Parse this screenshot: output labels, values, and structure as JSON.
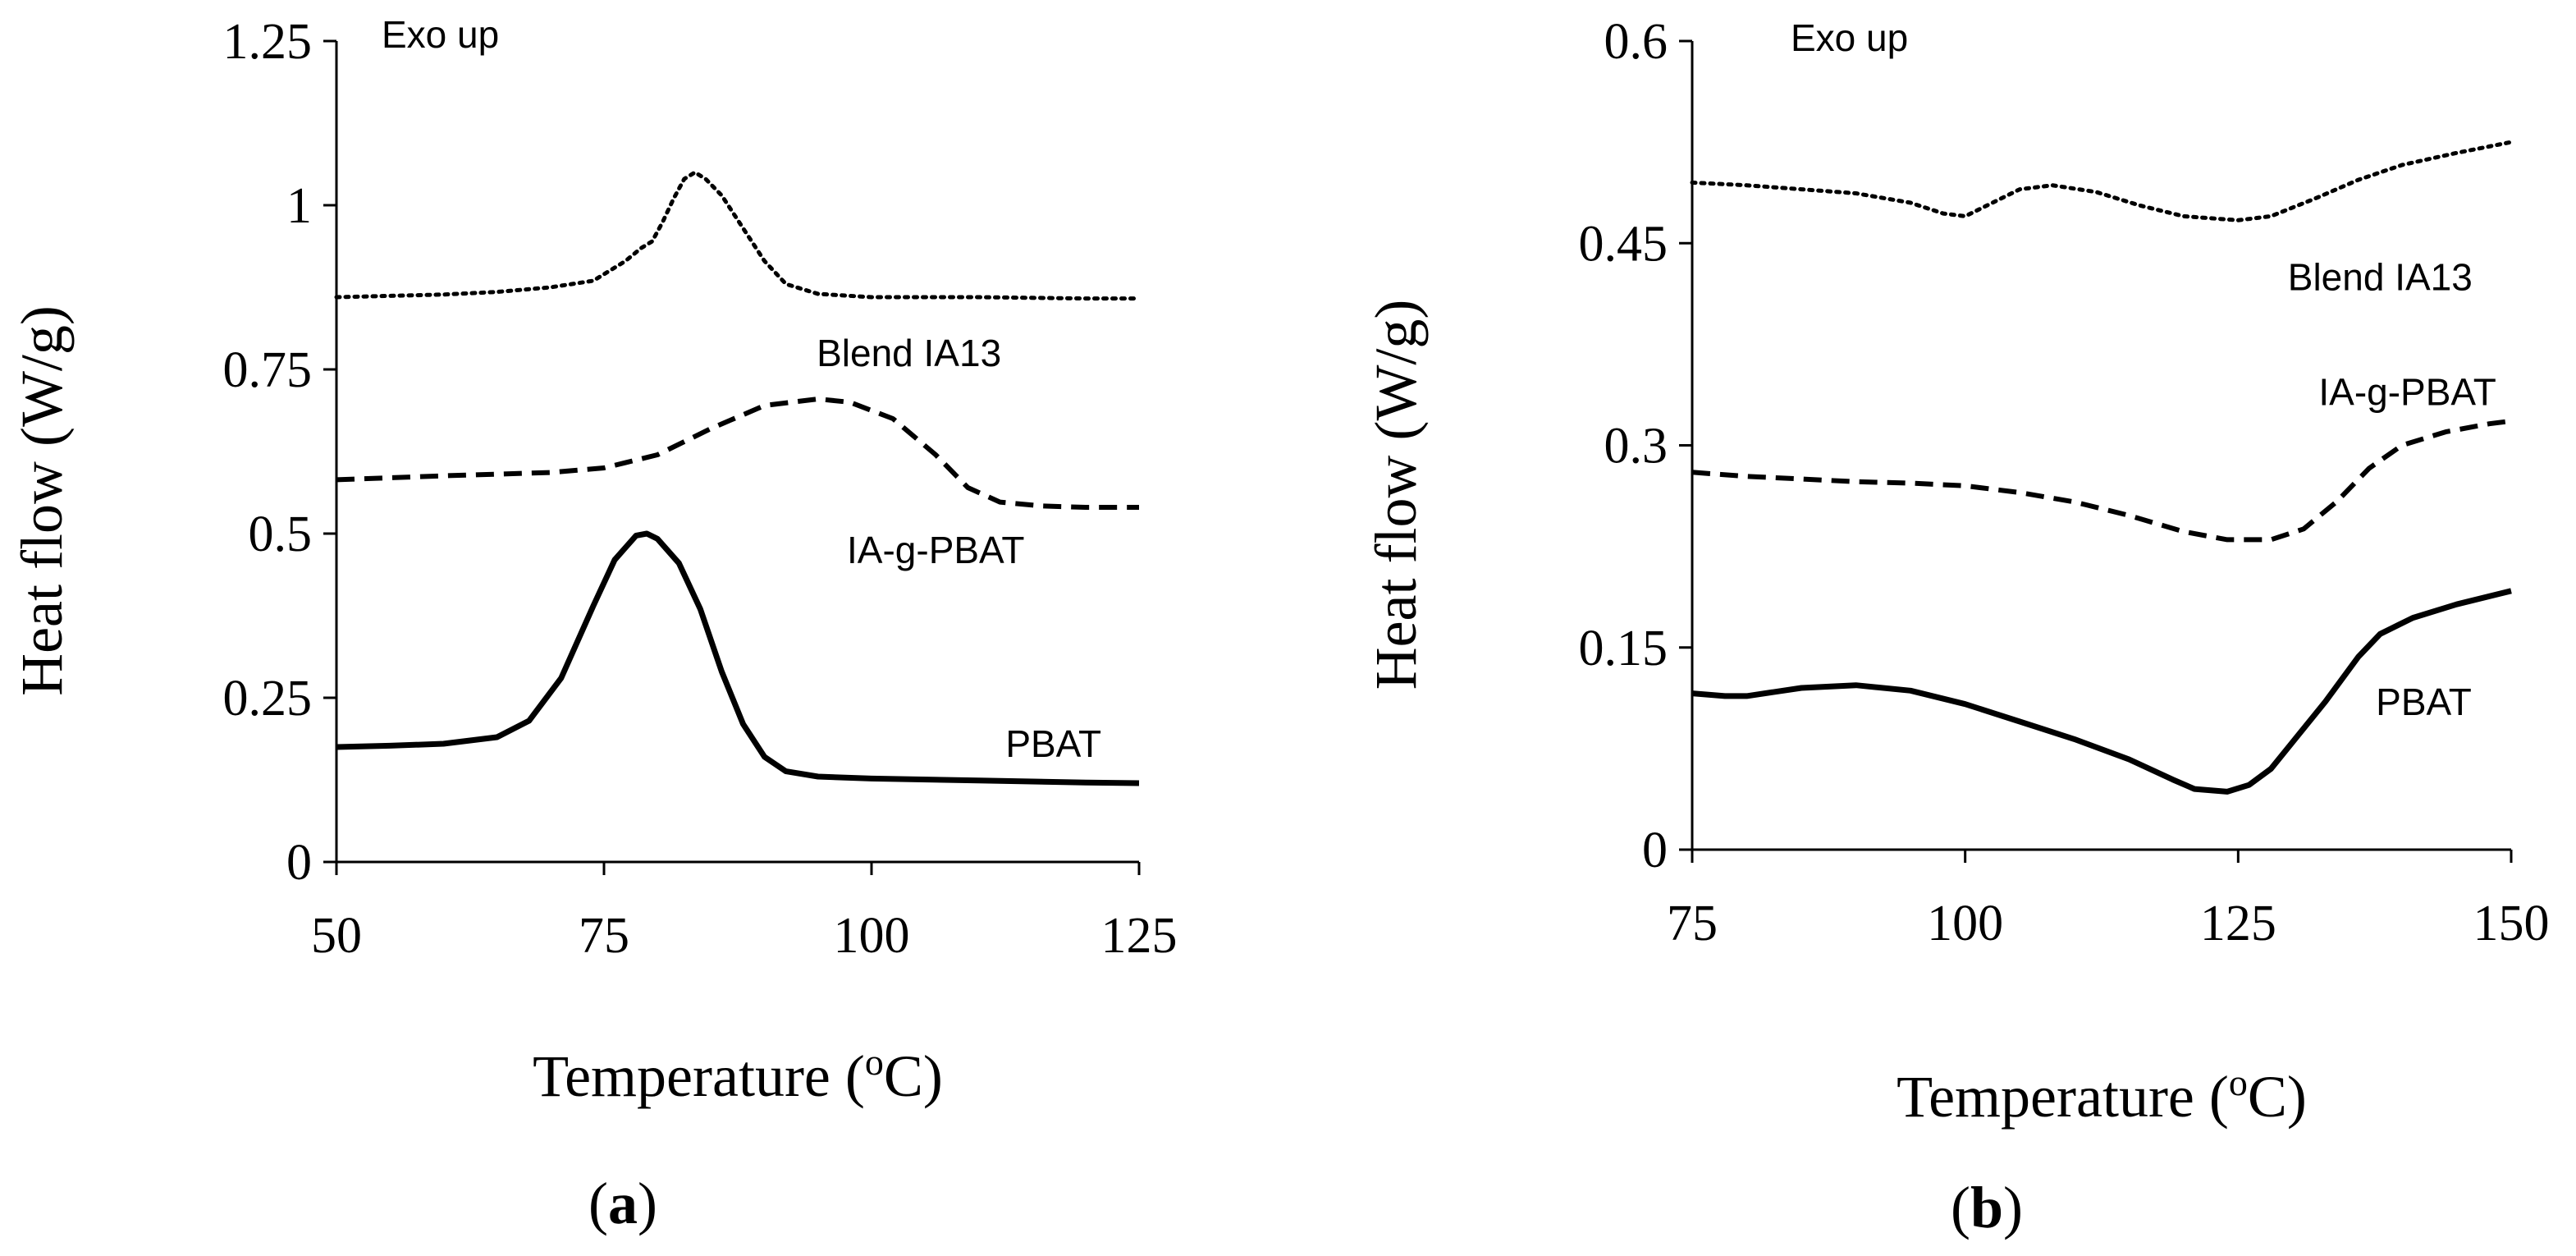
{
  "chart_data": [
    {
      "type": "line",
      "panel_label": "a",
      "xlabel": "Temperature (",
      "xlabel_sup": "o",
      "xlabel_tail": "C)",
      "ylabel": "Heat flow (W/g)",
      "xlim": [
        50,
        125
      ],
      "ylim": [
        0,
        1.25
      ],
      "x_ticks": [
        50,
        75,
        100,
        125
      ],
      "x_tick_labels": [
        "50",
        "75",
        "100",
        "125"
      ],
      "y_ticks": [
        0,
        0.25,
        0.5,
        0.75,
        1,
        1.25
      ],
      "y_tick_labels": [
        "0",
        "0.25",
        "0.5",
        "0.75",
        "1",
        "1.25"
      ],
      "annotation": "Exo up",
      "series": [
        {
          "name": "Blend IA13",
          "style": "dotted",
          "label_at": [
            103.5,
            0.755
          ],
          "points": [
            [
              50,
              0.86
            ],
            [
              55,
              0.862
            ],
            [
              60,
              0.864
            ],
            [
              65,
              0.868
            ],
            [
              70,
              0.875
            ],
            [
              74,
              0.885
            ],
            [
              77,
              0.915
            ],
            [
              78.5,
              0.935
            ],
            [
              79.5,
              0.945
            ],
            [
              80.5,
              0.975
            ],
            [
              81.5,
              1.01
            ],
            [
              82.5,
              1.04
            ],
            [
              83.5,
              1.05
            ],
            [
              84.5,
              1.04
            ],
            [
              86,
              1.015
            ],
            [
              88,
              0.965
            ],
            [
              90,
              0.915
            ],
            [
              92,
              0.88
            ],
            [
              95,
              0.865
            ],
            [
              100,
              0.86
            ],
            [
              110,
              0.86
            ],
            [
              120,
              0.858
            ],
            [
              125,
              0.858
            ]
          ]
        },
        {
          "name": "IA-g-PBAT",
          "style": "dashed",
          "label_at": [
            106,
            0.455
          ],
          "points": [
            [
              50,
              0.582
            ],
            [
              60,
              0.588
            ],
            [
              70,
              0.593
            ],
            [
              75,
              0.6
            ],
            [
              80,
              0.62
            ],
            [
              85,
              0.66
            ],
            [
              90,
              0.695
            ],
            [
              95,
              0.705
            ],
            [
              98,
              0.7
            ],
            [
              102,
              0.675
            ],
            [
              106,
              0.62
            ],
            [
              109,
              0.57
            ],
            [
              112,
              0.548
            ],
            [
              116,
              0.542
            ],
            [
              120,
              0.54
            ],
            [
              125,
              0.54
            ]
          ]
        },
        {
          "name": "PBAT",
          "style": "solid",
          "label_at": [
            117,
            0.16
          ],
          "points": [
            [
              50,
              0.175
            ],
            [
              55,
              0.177
            ],
            [
              60,
              0.18
            ],
            [
              65,
              0.19
            ],
            [
              68,
              0.215
            ],
            [
              71,
              0.28
            ],
            [
              74,
              0.39
            ],
            [
              76,
              0.46
            ],
            [
              78,
              0.497
            ],
            [
              79,
              0.5
            ],
            [
              80,
              0.492
            ],
            [
              82,
              0.455
            ],
            [
              84,
              0.385
            ],
            [
              86,
              0.29
            ],
            [
              88,
              0.21
            ],
            [
              90,
              0.16
            ],
            [
              92,
              0.138
            ],
            [
              95,
              0.13
            ],
            [
              100,
              0.127
            ],
            [
              110,
              0.124
            ],
            [
              120,
              0.121
            ],
            [
              125,
              0.12
            ]
          ]
        }
      ]
    },
    {
      "type": "line",
      "panel_label": "b",
      "xlabel": "Temperature (",
      "xlabel_sup": "o",
      "xlabel_tail": "C)",
      "ylabel": "Heat flow (W/g)",
      "xlim": [
        75,
        150
      ],
      "ylim": [
        0,
        0.6
      ],
      "x_ticks": [
        75,
        100,
        125,
        150
      ],
      "x_tick_labels": [
        "75",
        "100",
        "125",
        "150"
      ],
      "y_ticks": [
        0,
        0.15,
        0.3,
        0.45,
        0.6
      ],
      "y_tick_labels": [
        "0",
        "0.15",
        "0.3",
        "0.45",
        "0.6"
      ],
      "annotation": "Exo up",
      "series": [
        {
          "name": "Blend IA13",
          "style": "dotted",
          "label_at": [
            138,
            0.415
          ],
          "points": [
            [
              75,
              0.495
            ],
            [
              80,
              0.493
            ],
            [
              85,
              0.49
            ],
            [
              90,
              0.487
            ],
            [
              95,
              0.48
            ],
            [
              98,
              0.472
            ],
            [
              100,
              0.47
            ],
            [
              103,
              0.482
            ],
            [
              105,
              0.49
            ],
            [
              108,
              0.493
            ],
            [
              112,
              0.488
            ],
            [
              116,
              0.478
            ],
            [
              120,
              0.47
            ],
            [
              125,
              0.467
            ],
            [
              128,
              0.47
            ],
            [
              132,
              0.483
            ],
            [
              136,
              0.497
            ],
            [
              140,
              0.508
            ],
            [
              145,
              0.517
            ],
            [
              150,
              0.525
            ]
          ]
        },
        {
          "name": "IA-g-PBAT",
          "style": "dashed",
          "label_at": [
            140.5,
            0.33
          ],
          "points": [
            [
              75,
              0.28
            ],
            [
              80,
              0.277
            ],
            [
              85,
              0.275
            ],
            [
              90,
              0.273
            ],
            [
              95,
              0.272
            ],
            [
              100,
              0.27
            ],
            [
              105,
              0.265
            ],
            [
              110,
              0.258
            ],
            [
              115,
              0.248
            ],
            [
              120,
              0.236
            ],
            [
              124,
              0.23
            ],
            [
              128,
              0.23
            ],
            [
              131,
              0.238
            ],
            [
              134,
              0.258
            ],
            [
              137,
              0.283
            ],
            [
              140,
              0.3
            ],
            [
              144,
              0.31
            ],
            [
              148,
              0.316
            ],
            [
              150,
              0.318
            ]
          ]
        },
        {
          "name": "PBAT",
          "style": "solid",
          "label_at": [
            142,
            0.1
          ],
          "points": [
            [
              75,
              0.116
            ],
            [
              78,
              0.114
            ],
            [
              80,
              0.114
            ],
            [
              85,
              0.12
            ],
            [
              90,
              0.122
            ],
            [
              95,
              0.118
            ],
            [
              100,
              0.108
            ],
            [
              105,
              0.095
            ],
            [
              110,
              0.082
            ],
            [
              115,
              0.067
            ],
            [
              119,
              0.052
            ],
            [
              121,
              0.045
            ],
            [
              124,
              0.043
            ],
            [
              126,
              0.048
            ],
            [
              128,
              0.06
            ],
            [
              130,
              0.08
            ],
            [
              133,
              0.11
            ],
            [
              136,
              0.143
            ],
            [
              138,
              0.16
            ],
            [
              141,
              0.172
            ],
            [
              145,
              0.182
            ],
            [
              150,
              0.192
            ]
          ]
        }
      ]
    }
  ]
}
